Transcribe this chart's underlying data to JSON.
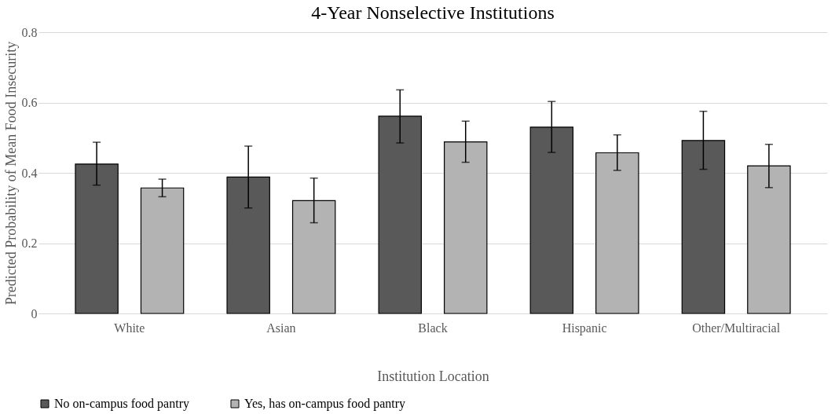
{
  "chart_data": {
    "type": "bar",
    "title": "4-Year Nonselective Institutions",
    "xlabel": "Institution Location",
    "ylabel": "Predicted Probability of Mean Food Insecurity",
    "categories": [
      "White",
      "Asian",
      "Black",
      "Hispanic",
      "Other/Multiracial"
    ],
    "series": [
      {
        "name": "No on-campus food pantry",
        "color": "#595959",
        "values": [
          0.425,
          0.388,
          0.561,
          0.53,
          0.492
        ],
        "errors": [
          [
            0.365,
            0.487
          ],
          [
            0.3,
            0.476
          ],
          [
            0.485,
            0.636
          ],
          [
            0.458,
            0.603
          ],
          [
            0.41,
            0.575
          ]
        ]
      },
      {
        "name": "Yes, has on-campus food pantry",
        "color": "#b3b3b3",
        "values": [
          0.357,
          0.321,
          0.488,
          0.457,
          0.42
        ],
        "errors": [
          [
            0.332,
            0.382
          ],
          [
            0.258,
            0.385
          ],
          [
            0.43,
            0.547
          ],
          [
            0.407,
            0.508
          ],
          [
            0.358,
            0.481
          ]
        ]
      }
    ],
    "ylim": [
      0,
      0.8
    ],
    "yticks": [
      {
        "value": 0,
        "label": "0"
      },
      0.2,
      0.4,
      0.6,
      0.8
    ],
    "grid": "y",
    "legend": "bottom"
  }
}
